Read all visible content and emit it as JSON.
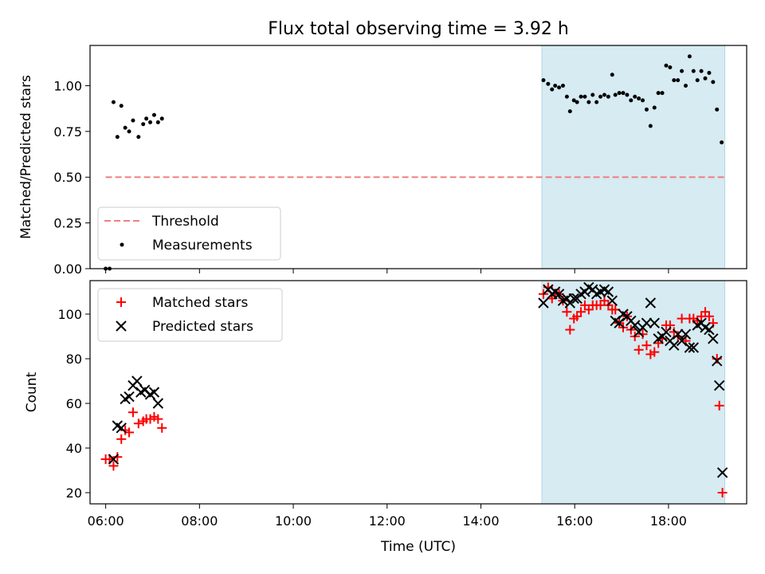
{
  "chart_data": [
    {
      "type": "scatter",
      "title": "Flux total observing time = 3.92 h",
      "xlabel": "",
      "ylabel": "Matched/Predicted stars",
      "xlim": [
        "05:40",
        "19:40"
      ],
      "ylim": [
        0,
        1.22
      ],
      "yticks": [
        "0.00",
        "0.25",
        "0.50",
        "0.75",
        "1.00"
      ],
      "grid": false,
      "legend_position": "lower-left",
      "highlight_span": {
        "start": "15:18",
        "end": "19:12",
        "color": "#add8e6"
      },
      "threshold": {
        "name": "Threshold",
        "value": 0.5,
        "start": "06:00",
        "end": "19:12",
        "color": "#f08080",
        "style": "dashed"
      },
      "series": [
        {
          "name": "Measurements",
          "marker": "dot",
          "color": "#000000",
          "points": [
            [
              "06:00",
              0.0
            ],
            [
              "06:05",
              0.0
            ],
            [
              "06:10",
              0.91
            ],
            [
              "06:15",
              0.72
            ],
            [
              "06:20",
              0.89
            ],
            [
              "06:25",
              0.77
            ],
            [
              "06:30",
              0.75
            ],
            [
              "06:35",
              0.81
            ],
            [
              "06:42",
              0.72
            ],
            [
              "06:48",
              0.79
            ],
            [
              "06:52",
              0.82
            ],
            [
              "06:57",
              0.8
            ],
            [
              "07:02",
              0.84
            ],
            [
              "07:07",
              0.8
            ],
            [
              "07:12",
              0.82
            ],
            [
              "15:20",
              1.03
            ],
            [
              "15:26",
              1.01
            ],
            [
              "15:31",
              0.98
            ],
            [
              "15:35",
              1.0
            ],
            [
              "15:40",
              0.99
            ],
            [
              "15:45",
              1.0
            ],
            [
              "15:50",
              0.94
            ],
            [
              "15:54",
              0.86
            ],
            [
              "15:59",
              0.92
            ],
            [
              "16:03",
              0.91
            ],
            [
              "16:08",
              0.94
            ],
            [
              "16:13",
              0.94
            ],
            [
              "16:18",
              0.91
            ],
            [
              "16:23",
              0.95
            ],
            [
              "16:28",
              0.91
            ],
            [
              "16:33",
              0.94
            ],
            [
              "16:38",
              0.95
            ],
            [
              "16:43",
              0.94
            ],
            [
              "16:48",
              1.06
            ],
            [
              "16:52",
              0.95
            ],
            [
              "16:57",
              0.96
            ],
            [
              "17:02",
              0.96
            ],
            [
              "17:07",
              0.95
            ],
            [
              "17:12",
              0.92
            ],
            [
              "17:17",
              0.94
            ],
            [
              "17:22",
              0.93
            ],
            [
              "17:27",
              0.92
            ],
            [
              "17:32",
              0.87
            ],
            [
              "17:37",
              0.78
            ],
            [
              "17:42",
              0.88
            ],
            [
              "17:47",
              0.96
            ],
            [
              "17:52",
              0.96
            ],
            [
              "17:57",
              1.11
            ],
            [
              "18:02",
              1.1
            ],
            [
              "18:07",
              1.03
            ],
            [
              "18:12",
              1.03
            ],
            [
              "18:17",
              1.08
            ],
            [
              "18:22",
              1.0
            ],
            [
              "18:27",
              1.16
            ],
            [
              "18:32",
              1.08
            ],
            [
              "18:37",
              1.03
            ],
            [
              "18:42",
              1.08
            ],
            [
              "18:47",
              1.04
            ],
            [
              "18:52",
              1.07
            ],
            [
              "18:57",
              1.02
            ],
            [
              "19:02",
              0.87
            ],
            [
              "19:08",
              0.69
            ]
          ]
        }
      ]
    },
    {
      "type": "scatter",
      "title": "",
      "xlabel": "Time (UTC)",
      "ylabel": "Count",
      "xlim": [
        "05:40",
        "19:40"
      ],
      "ylim": [
        15,
        115
      ],
      "xticks": [
        "06:00",
        "08:00",
        "10:00",
        "12:00",
        "14:00",
        "16:00",
        "18:00"
      ],
      "yticks": [
        "20",
        "40",
        "60",
        "80",
        "100"
      ],
      "grid": false,
      "legend_position": "top-left",
      "highlight_span": {
        "start": "15:18",
        "end": "19:12",
        "color": "#add8e6"
      },
      "series": [
        {
          "name": "Matched stars",
          "marker": "plus",
          "color": "#ff0000",
          "points": [
            [
              "06:00",
              35
            ],
            [
              "06:05",
              35
            ],
            [
              "06:10",
              32
            ],
            [
              "06:15",
              36
            ],
            [
              "06:20",
              44
            ],
            [
              "06:25",
              48
            ],
            [
              "06:30",
              47
            ],
            [
              "06:35",
              56
            ],
            [
              "06:42",
              51
            ],
            [
              "06:48",
              52
            ],
            [
              "06:52",
              53
            ],
            [
              "06:57",
              53
            ],
            [
              "07:02",
              54
            ],
            [
              "07:07",
              53
            ],
            [
              "07:12",
              49
            ],
            [
              "15:20",
              109
            ],
            [
              "15:26",
              112
            ],
            [
              "15:31",
              107
            ],
            [
              "15:35",
              109
            ],
            [
              "15:40",
              109
            ],
            [
              "15:45",
              106
            ],
            [
              "15:50",
              101
            ],
            [
              "15:54",
              93
            ],
            [
              "15:59",
              98
            ],
            [
              "16:03",
              99
            ],
            [
              "16:08",
              101
            ],
            [
              "16:13",
              104
            ],
            [
              "16:18",
              102
            ],
            [
              "16:23",
              104
            ],
            [
              "16:28",
              104
            ],
            [
              "16:33",
              104
            ],
            [
              "16:38",
              106
            ],
            [
              "16:43",
              104
            ],
            [
              "16:48",
              102
            ],
            [
              "16:52",
              102
            ],
            [
              "16:57",
              96
            ],
            [
              "17:02",
              94
            ],
            [
              "17:07",
              99
            ],
            [
              "17:12",
              93
            ],
            [
              "17:17",
              90
            ],
            [
              "17:22",
              84
            ],
            [
              "17:27",
              91
            ],
            [
              "17:32",
              86
            ],
            [
              "17:37",
              82
            ],
            [
              "17:42",
              83
            ],
            [
              "17:47",
              87
            ],
            [
              "17:52",
              89
            ],
            [
              "17:57",
              95
            ],
            [
              "18:02",
              95
            ],
            [
              "18:07",
              92
            ],
            [
              "18:12",
              90
            ],
            [
              "18:17",
              98
            ],
            [
              "18:22",
              88
            ],
            [
              "18:27",
              98
            ],
            [
              "18:32",
              98
            ],
            [
              "18:37",
              97
            ],
            [
              "18:42",
              99
            ],
            [
              "18:47",
              101
            ],
            [
              "18:52",
              99
            ],
            [
              "18:57",
              96
            ],
            [
              "19:02",
              80
            ],
            [
              "19:05",
              59
            ],
            [
              "19:09",
              20
            ]
          ]
        },
        {
          "name": "Predicted stars",
          "marker": "x",
          "color": "#000000",
          "points": [
            [
              "06:10",
              35
            ],
            [
              "06:15",
              50
            ],
            [
              "06:20",
              49
            ],
            [
              "06:25",
              62
            ],
            [
              "06:30",
              63
            ],
            [
              "06:35",
              68
            ],
            [
              "06:40",
              70
            ],
            [
              "06:45",
              65
            ],
            [
              "06:50",
              66
            ],
            [
              "06:57",
              64
            ],
            [
              "07:02",
              65
            ],
            [
              "07:07",
              60
            ],
            [
              "15:20",
              105
            ],
            [
              "15:26",
              111
            ],
            [
              "15:31",
              109
            ],
            [
              "15:35",
              110
            ],
            [
              "15:40",
              109
            ],
            [
              "15:45",
              106
            ],
            [
              "15:50",
              107
            ],
            [
              "15:54",
              105
            ],
            [
              "15:59",
              107
            ],
            [
              "16:03",
              107
            ],
            [
              "16:08",
              109
            ],
            [
              "16:13",
              110
            ],
            [
              "16:18",
              112
            ],
            [
              "16:23",
              111
            ],
            [
              "16:28",
              109
            ],
            [
              "16:33",
              110
            ],
            [
              "16:38",
              111
            ],
            [
              "16:43",
              110
            ],
            [
              "16:48",
              106
            ],
            [
              "16:52",
              97
            ],
            [
              "16:57",
              96
            ],
            [
              "17:02",
              100
            ],
            [
              "17:07",
              99
            ],
            [
              "17:12",
              97
            ],
            [
              "17:17",
              95
            ],
            [
              "17:22",
              92
            ],
            [
              "17:27",
              94
            ],
            [
              "17:32",
              96
            ],
            [
              "17:37",
              105
            ],
            [
              "17:42",
              96
            ],
            [
              "17:47",
              89
            ],
            [
              "17:52",
              90
            ],
            [
              "17:57",
              92
            ],
            [
              "18:02",
              88
            ],
            [
              "18:07",
              86
            ],
            [
              "18:12",
              91
            ],
            [
              "18:17",
              88
            ],
            [
              "18:22",
              91
            ],
            [
              "18:27",
              85
            ],
            [
              "18:32",
              85
            ],
            [
              "18:37",
              95
            ],
            [
              "18:42",
              96
            ],
            [
              "18:47",
              94
            ],
            [
              "18:52",
              93
            ],
            [
              "18:57",
              89
            ],
            [
              "19:02",
              79
            ],
            [
              "19:05",
              68
            ],
            [
              "19:09",
              29
            ]
          ]
        }
      ]
    }
  ]
}
